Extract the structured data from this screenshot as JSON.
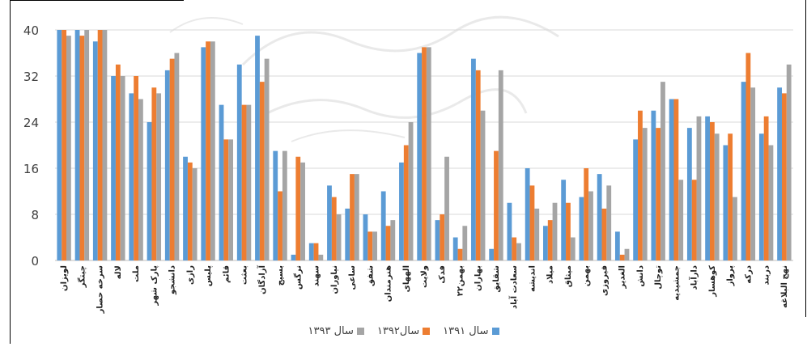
{
  "chart_data": {
    "type": "bar",
    "title": "",
    "xlabel": "",
    "ylabel": "",
    "ylim": [
      0,
      40
    ],
    "yticks": [
      "0",
      "8",
      "16",
      "24",
      "32",
      "40"
    ],
    "grid": true,
    "legend_position": "bottom",
    "colors": [
      "#5b9bd5",
      "#ed7d31",
      "#a5a5a5"
    ],
    "categories": [
      "لویزان",
      "چیتگر",
      "سرخه حصار",
      "لاله",
      "ملت",
      "پارک شهر",
      "دانشجو",
      "رازی",
      "پلیس",
      "قائم",
      "بعثت",
      "آزادگان",
      "بسیج",
      "نرگس",
      "سهند",
      "نیاوران",
      "ساعی",
      "شفق",
      "هنرمندان",
      "الههای",
      "ولایت",
      "فدک",
      "۲۲بهمن",
      "بهاران",
      "شقایق",
      "سعادت آباد",
      "اندیشه",
      "میلاد",
      "میثاق",
      "بهمن",
      "فیروزی",
      "الغدیر",
      "دانش",
      "توچال",
      "جمشیدیه",
      "دارآباد",
      "کوهسار",
      "پرواز",
      "درکه",
      "دربند",
      "نهج البلاغه"
    ],
    "series": [
      {
        "name": "سال ۱۳۹۱",
        "color": "#5b9bd5",
        "values": [
          40,
          40,
          38,
          32,
          29,
          24,
          33,
          18,
          37,
          27,
          34,
          39,
          19,
          1,
          3,
          13,
          9,
          8,
          12,
          17,
          36,
          7,
          4,
          35,
          2,
          10,
          16,
          6,
          14,
          11,
          15,
          5,
          21,
          26,
          28,
          23,
          25,
          20,
          31,
          22,
          30
        ]
      },
      {
        "name": "سال۱۳۹۲",
        "color": "#ed7d31",
        "values": [
          40,
          39,
          40,
          34,
          32,
          30,
          35,
          17,
          38,
          21,
          27,
          31,
          12,
          18,
          3,
          11,
          15,
          5,
          6,
          20,
          37,
          8,
          2,
          33,
          19,
          4,
          13,
          7,
          10,
          16,
          9,
          1,
          26,
          23,
          28,
          14,
          24,
          22,
          36,
          25,
          29
        ]
      },
      {
        "name": "سال ۱۳۹۳",
        "color": "#a5a5a5",
        "values": [
          39,
          40,
          40,
          32,
          28,
          29,
          36,
          16,
          38,
          21,
          27,
          35,
          19,
          17,
          1,
          8,
          15,
          5,
          7,
          24,
          37,
          18,
          6,
          26,
          33,
          3,
          9,
          10,
          4,
          12,
          13,
          2,
          23,
          31,
          14,
          25,
          22,
          11,
          30,
          20,
          34
        ]
      }
    ]
  }
}
